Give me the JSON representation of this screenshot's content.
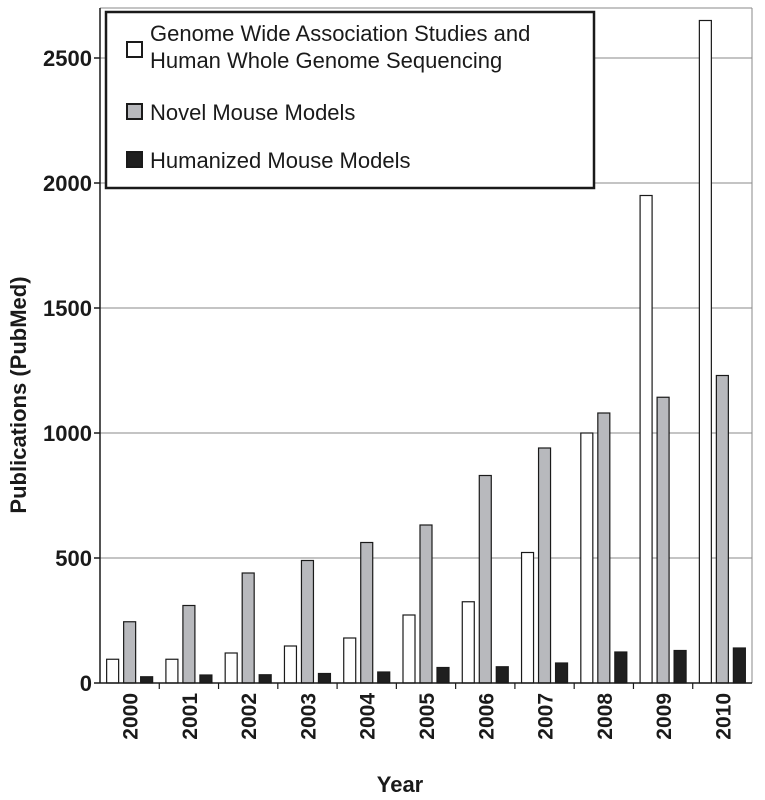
{
  "chart_data": {
    "type": "bar",
    "categories": [
      "2000",
      "2001",
      "2002",
      "2003",
      "2004",
      "2005",
      "2006",
      "2007",
      "2008",
      "2009",
      "2010"
    ],
    "series": [
      {
        "name": "Genome Wide Association Studies and Human Whole Genome Sequencing",
        "name_lines": [
          "Genome Wide Association Studies and",
          "Human Whole Genome Sequencing"
        ],
        "color": "#ffffff",
        "values": [
          95,
          95,
          120,
          148,
          180,
          272,
          325,
          522,
          1000,
          1950,
          2650
        ]
      },
      {
        "name": "Novel Mouse Models",
        "name_lines": [
          "Novel Mouse Models"
        ],
        "color": "#b8b9bd",
        "values": [
          245,
          310,
          440,
          490,
          562,
          632,
          830,
          940,
          1080,
          1143,
          1230
        ]
      },
      {
        "name": "Humanized Mouse Models",
        "name_lines": [
          "Humanized Mouse Models"
        ],
        "color": "#1f1f1f",
        "values": [
          25,
          32,
          33,
          38,
          44,
          62,
          65,
          80,
          124,
          130,
          140
        ]
      }
    ],
    "xlabel": "Year",
    "ylabel": "Publications (PubMed)",
    "ylim": [
      0,
      2700
    ],
    "yticks": [
      "0",
      "500",
      "1000",
      "1500",
      "2000",
      "2500"
    ],
    "grid": true,
    "legend_position": "top-left"
  }
}
